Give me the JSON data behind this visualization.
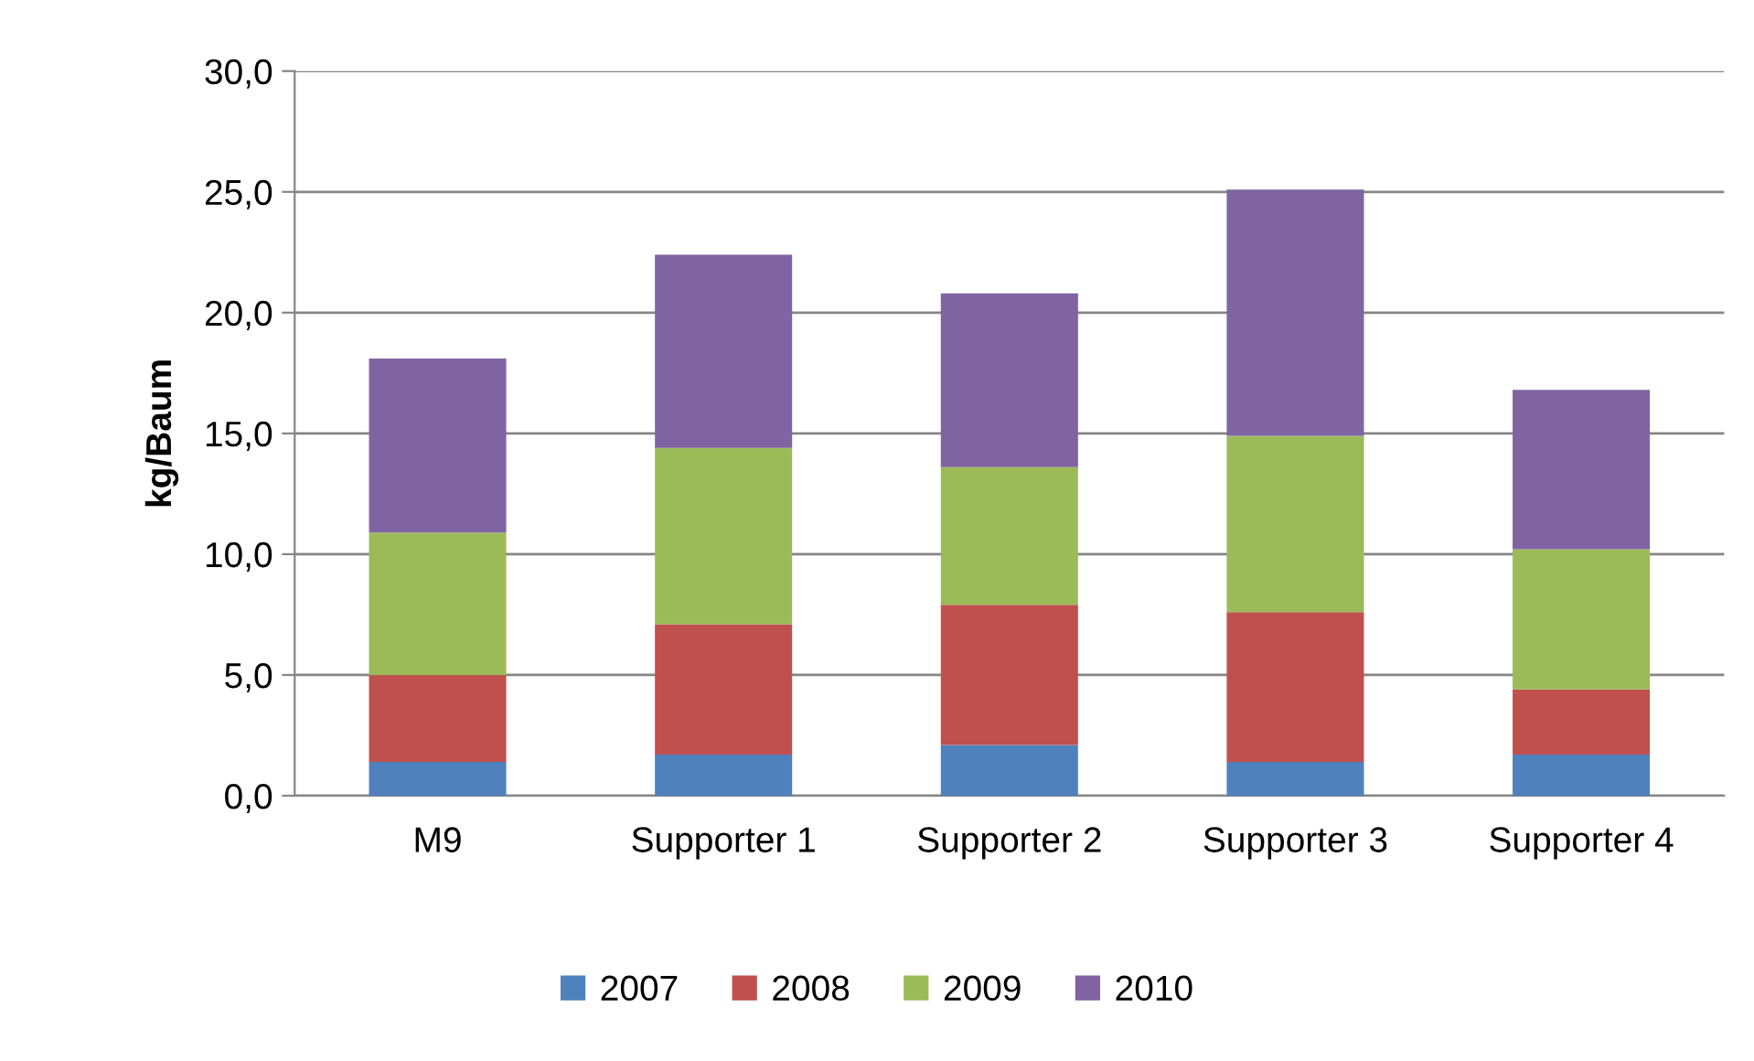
{
  "chart_data": {
    "type": "bar",
    "stacked": true,
    "ylabel": "kg/Baum",
    "categories": [
      "M9",
      "Supporter 1",
      "Supporter 2",
      "Supporter 3",
      "Supporter 4"
    ],
    "series": [
      {
        "name": "2007",
        "color": "#4f81bd",
        "values": [
          1.4,
          1.7,
          2.1,
          1.4,
          1.7
        ]
      },
      {
        "name": "2008",
        "color": "#c0504d",
        "values": [
          3.6,
          5.4,
          5.8,
          6.2,
          2.7
        ]
      },
      {
        "name": "2009",
        "color": "#9bbb59",
        "values": [
          5.9,
          7.3,
          5.7,
          7.3,
          5.8
        ]
      },
      {
        "name": "2010",
        "color": "#8064a2",
        "values": [
          7.2,
          8.0,
          7.2,
          10.2,
          6.6
        ]
      }
    ],
    "ylim": [
      0,
      30
    ],
    "yticks": [
      {
        "value": 0,
        "label": "0,0"
      },
      {
        "value": 5,
        "label": "5,0"
      },
      {
        "value": 10,
        "label": "10,0"
      },
      {
        "value": 15,
        "label": "15,0"
      },
      {
        "value": 20,
        "label": "20,0"
      },
      {
        "value": 25,
        "label": "25,0"
      },
      {
        "value": 30,
        "label": "30,0"
      }
    ],
    "grid": "y",
    "legend": "bottom"
  }
}
